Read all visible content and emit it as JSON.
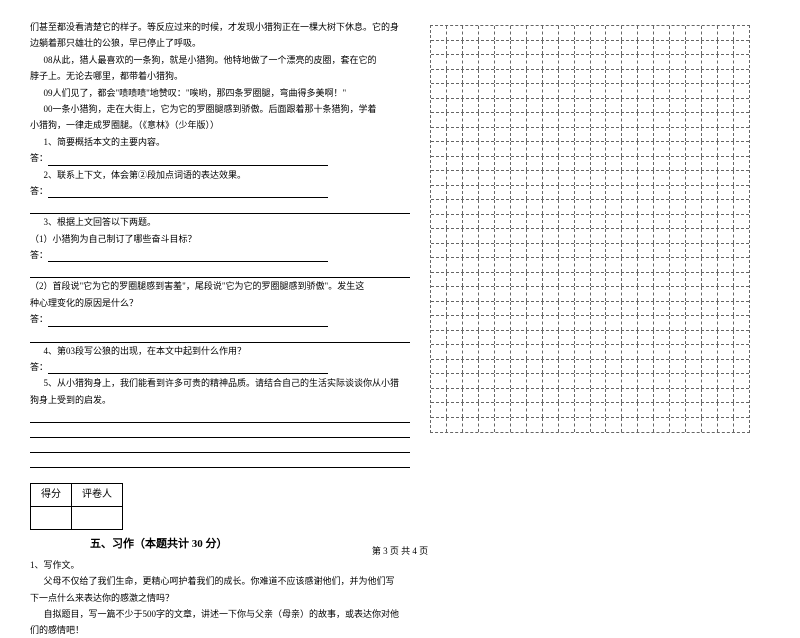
{
  "passage": {
    "line1": "们甚至都没看清楚它的样子。等反应过来的时候，才发现小猎狗正在一棵大树下休息。它的身",
    "line2": "边躺着那只雄壮的公狼，早已停止了呼吸。",
    "line3": "08从此，猎人最喜欢的一条狗，就是小猎狗。他特地做了一个漂亮的皮圈，套在它的",
    "line4": "脖子上。无论去哪里，都带着小猎狗。",
    "line5": "09人们见了，都会\"啧啧啧\"地赞叹：\"唉哟，那四条罗圈腿，弯曲得多美啊！\"",
    "line6": "00一条小猎狗，走在大街上，它为它的罗圈腿感到骄傲。后面跟着那十条猎狗，学着",
    "line7": "小猎狗，一律走成罗圈腿。（《意林》（少年版））",
    "q1_label": "1、简要概括本文的主要内容。",
    "ans_label": "答：",
    "q2_label": "2、联系上下文，体会第②段加点词语的表达效果。",
    "q3_label": "3、根据上文回答以下两题。",
    "q3_1": "（1）小猎狗为自己制订了哪些奋斗目标？",
    "q3_2": "（2）首段说\"它为它的罗圈腿感到害羞\"，尾段说\"它为它的罗圈腿感到骄傲\"。发生这",
    "q3_2b": "种心理变化的原因是什么？",
    "q4_label": "4、第03段写公狼的出现，在本文中起到什么作用？",
    "q5_label": "5、从小猎狗身上，我们能看到许多可贵的精神品质。请结合自己的生活实际谈谈你从小猎",
    "q5b": "狗身上受到的启发。"
  },
  "score_table": {
    "col1": "得分",
    "col2": "评卷人"
  },
  "section": {
    "title": "五、习作（本题共计 30 分）"
  },
  "essay": {
    "q_num": "1、写作文。",
    "line1": "父母不仅给了我们生命，更精心呵护着我们的成长。你难道不应该感谢他们，并为他们写",
    "line2": "下一点什么来表达你的感激之情吗？",
    "line3": "自拟题目，写一篇不少于500字的文章，讲述一下你与父亲（母亲）的故事，或表达你对他",
    "line4": "们的感情吧！"
  },
  "footer": {
    "text": "第 3 页 共 4 页"
  },
  "grid": {
    "rows": 28,
    "cols": 20
  }
}
